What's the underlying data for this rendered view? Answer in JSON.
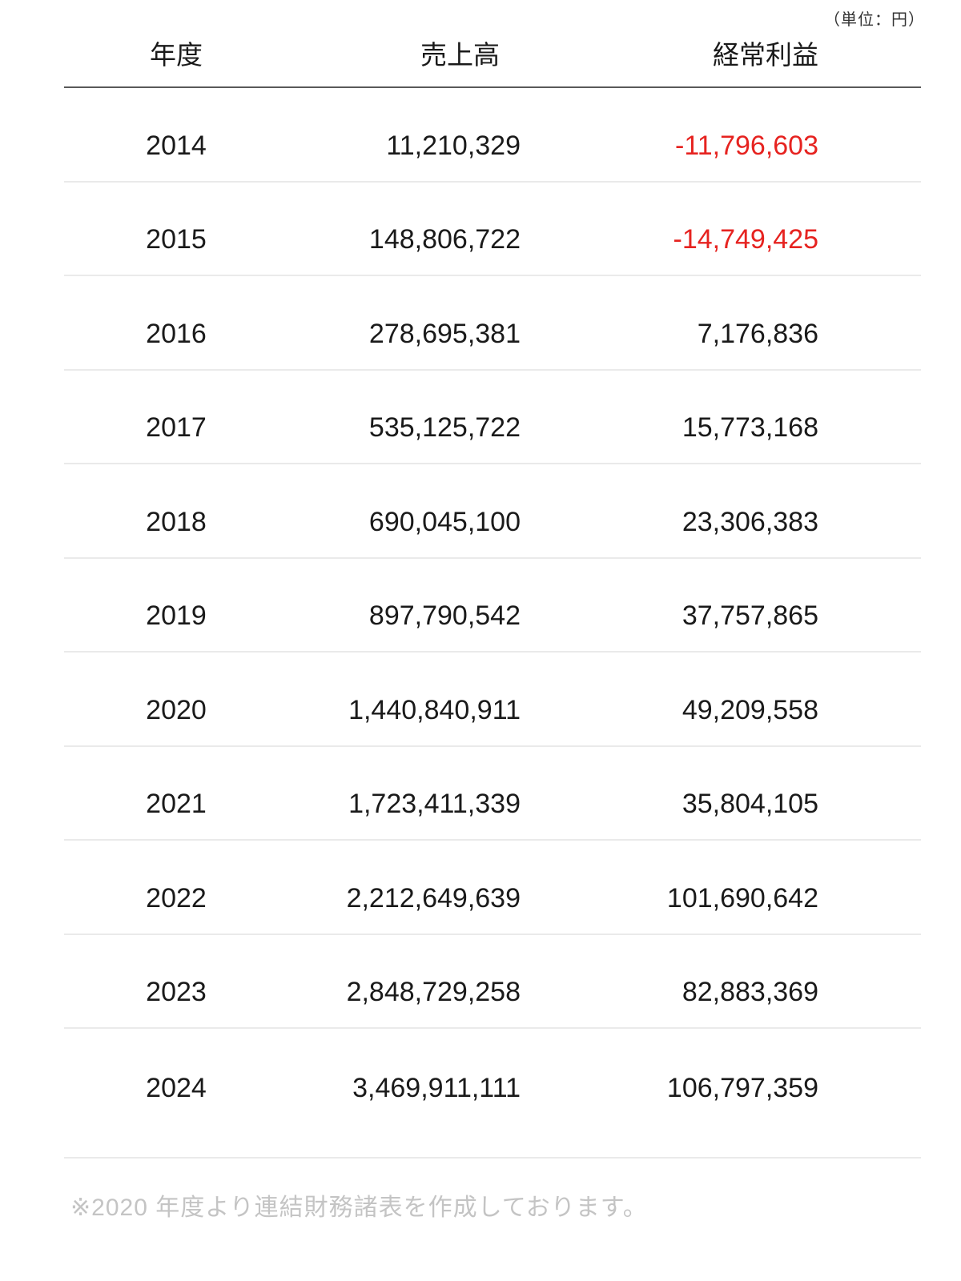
{
  "unit_label": "（単位：円）",
  "table": {
    "columns": [
      "年度",
      "売上高",
      "経常利益"
    ],
    "rows": [
      {
        "year": "2014",
        "sales": "11,210,329",
        "profit": "-11,796,603",
        "negative": true
      },
      {
        "year": "2015",
        "sales": "148,806,722",
        "profit": "-14,749,425",
        "negative": true
      },
      {
        "year": "2016",
        "sales": "278,695,381",
        "profit": "7,176,836",
        "negative": false
      },
      {
        "year": "2017",
        "sales": "535,125,722",
        "profit": "15,773,168",
        "negative": false
      },
      {
        "year": "2018",
        "sales": "690,045,100",
        "profit": "23,306,383",
        "negative": false
      },
      {
        "year": "2019",
        "sales": "897,790,542",
        "profit": "37,757,865",
        "negative": false
      },
      {
        "year": "2020",
        "sales": "1,440,840,911",
        "profit": "49,209,558",
        "negative": false
      },
      {
        "year": "2021",
        "sales": "1,723,411,339",
        "profit": "35,804,105",
        "negative": false
      },
      {
        "year": "2022",
        "sales": "2,212,649,639",
        "profit": "101,690,642",
        "negative": false
      },
      {
        "year": "2023",
        "sales": "2,848,729,258",
        "profit": "82,883,369",
        "negative": false
      },
      {
        "year": "2024",
        "sales": "3,469,911,111",
        "profit": "106,797,359",
        "negative": false
      }
    ]
  },
  "footnote": "※2020 年度より連結財務諸表を作成しております。",
  "colors": {
    "negative_value": "#e62320",
    "header_border": "#595959",
    "row_divider": "#eaeaea",
    "footnote_text": "#c4c4c4",
    "body_text": "#1a1a1a"
  },
  "chart_data": {
    "type": "table",
    "title": "",
    "unit": "（単位：円）",
    "columns": [
      "年度",
      "売上高",
      "経常利益"
    ],
    "rows": [
      [
        2014,
        11210329,
        -11796603
      ],
      [
        2015,
        148806722,
        -14749425
      ],
      [
        2016,
        278695381,
        7176836
      ],
      [
        2017,
        535125722,
        15773168
      ],
      [
        2018,
        690045100,
        23306383
      ],
      [
        2019,
        897790542,
        37757865
      ],
      [
        2020,
        1440840911,
        49209558
      ],
      [
        2021,
        1723411339,
        35804105
      ],
      [
        2022,
        2212649639,
        101690642
      ],
      [
        2023,
        2848729258,
        82883369
      ],
      [
        2024,
        3469911111,
        106797359
      ]
    ],
    "negative_values_colored": "経常利益 2014, 2015 shown in red",
    "note": "※2020 年度より連結財務諸表を作成しております。"
  }
}
